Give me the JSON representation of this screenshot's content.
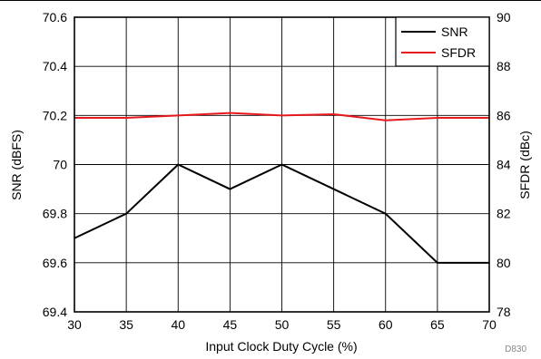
{
  "chart_data": {
    "type": "line",
    "x": [
      30,
      35,
      40,
      45,
      50,
      55,
      60,
      65,
      70
    ],
    "series": [
      {
        "name": "SNR",
        "axis": "left",
        "color": "#000000",
        "values": [
          69.7,
          69.8,
          70.0,
          69.9,
          70.0,
          69.9,
          69.8,
          69.6,
          69.6
        ]
      },
      {
        "name": "SFDR",
        "axis": "right",
        "color": "#e8191d",
        "values": [
          85.9,
          85.9,
          86.0,
          86.1,
          86.0,
          86.05,
          85.8,
          85.9,
          85.9
        ]
      }
    ],
    "xlabel": "Input Clock Duty Cycle (%)",
    "ylabel": "SNR (dBFS)",
    "y2label": "SFDR (dBc)",
    "xlim": [
      30,
      70
    ],
    "ylim": [
      69.4,
      70.6
    ],
    "y2lim": [
      78,
      90
    ],
    "xticks": [
      "30",
      "35",
      "40",
      "45",
      "50",
      "55",
      "60",
      "65",
      "70"
    ],
    "yticks": [
      "69.4",
      "69.6",
      "69.8",
      "70",
      "70.2",
      "70.4",
      "70.6"
    ],
    "y2ticks": [
      "78",
      "80",
      "82",
      "84",
      "86",
      "88",
      "90"
    ],
    "grid": true,
    "legend_position": "top-right",
    "figure_id": "D830"
  }
}
